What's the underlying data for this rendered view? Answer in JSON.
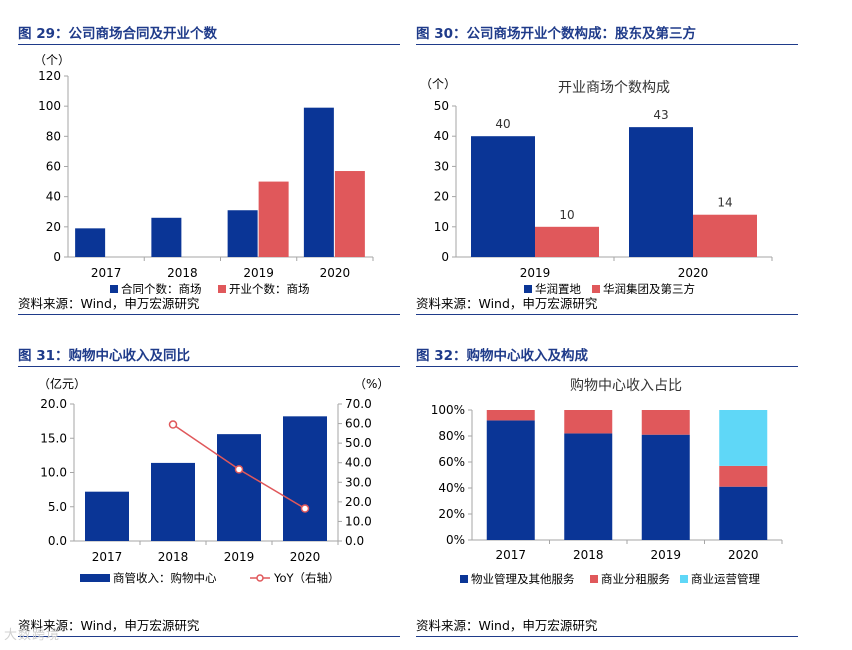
{
  "colors": {
    "navy": "#0a3596",
    "red": "#e0585b",
    "cyan": "#5fd7f7",
    "axis": "#a6a6a6",
    "title": "#1f3b8a"
  },
  "watermark": "大数跨境",
  "panels": [
    {
      "title": "图 29：公司商场合同及开业个数",
      "source": "资料来源：Wind，申万宏源研究"
    },
    {
      "title": "图 30：公司商场开业个数构成：股东及第三方",
      "source": "资料来源：Wind，申万宏源研究"
    },
    {
      "title": "图 31：购物中心收入及同比",
      "source": "资料来源：Wind，申万宏源研究"
    },
    {
      "title": "图 32：购物中心收入及构成",
      "source": "资料来源：Wind，申万宏源研究"
    }
  ],
  "chart_data": [
    {
      "type": "bar",
      "title": "",
      "unit_label": "（个）",
      "categories": [
        "2017",
        "2018",
        "2019",
        "2020"
      ],
      "series": [
        {
          "name": "合同个数：商场",
          "values": [
            19,
            26,
            31,
            99
          ]
        },
        {
          "name": "开业个数：商场",
          "values": [
            0,
            0,
            50,
            57
          ]
        }
      ],
      "ylim": [
        0,
        120
      ],
      "yticks": [
        0,
        20,
        40,
        60,
        80,
        100,
        120
      ],
      "ytick_labels": [
        "0",
        "20",
        "40",
        "60",
        "80",
        "100",
        "120"
      ],
      "legend": "bottom"
    },
    {
      "type": "bar",
      "title": "开业商场个数构成",
      "unit_label": "（个）",
      "categories": [
        "2019",
        "2020"
      ],
      "series": [
        {
          "name": "华润置地",
          "values": [
            40,
            43
          ]
        },
        {
          "name": "华润集团及第三方",
          "values": [
            10,
            14
          ]
        }
      ],
      "data_labels": [
        [
          "40",
          "43"
        ],
        [
          "10",
          "14"
        ]
      ],
      "ylim": [
        0,
        50
      ],
      "yticks": [
        0,
        10,
        20,
        30,
        40,
        50
      ],
      "ytick_labels": [
        "0",
        "10",
        "20",
        "30",
        "40",
        "50"
      ],
      "legend": "bottom"
    },
    {
      "type": "bar+line",
      "title": "",
      "unit_label_left": "（亿元）",
      "unit_label_right": "（%）",
      "categories": [
        "2017",
        "2018",
        "2019",
        "2020"
      ],
      "series": [
        {
          "name": "商管收入：购物中心",
          "type": "bar",
          "axis": "left",
          "values": [
            7.2,
            11.4,
            15.6,
            18.2
          ]
        },
        {
          "name": "YoY（右轴）",
          "type": "line",
          "axis": "right",
          "values": [
            null,
            59.5,
            36.6,
            16.6
          ]
        }
      ],
      "ylim_left": [
        0,
        20
      ],
      "yticks_left": [
        0,
        5,
        10,
        15,
        20
      ],
      "ytick_labels_left": [
        "0.0",
        "5.0",
        "10.0",
        "15.0",
        "20.0"
      ],
      "ylim_right": [
        0,
        70
      ],
      "yticks_right": [
        0,
        10,
        20,
        30,
        40,
        50,
        60,
        70
      ],
      "ytick_labels_right": [
        "0.0",
        "10.0",
        "20.0",
        "30.0",
        "40.0",
        "50.0",
        "60.0",
        "70.0"
      ],
      "legend": "bottom"
    },
    {
      "type": "stacked_bar_percent",
      "title": "购物中心收入占比",
      "categories": [
        "2017",
        "2018",
        "2019",
        "2020"
      ],
      "series": [
        {
          "name": "物业管理及其他服务",
          "values": [
            92,
            82,
            81,
            41
          ]
        },
        {
          "name": "商业分租服务",
          "values": [
            8,
            18,
            19,
            16
          ]
        },
        {
          "name": "商业运营管理",
          "values": [
            0,
            0,
            0,
            43
          ]
        }
      ],
      "ylim": [
        0,
        100
      ],
      "yticks": [
        0,
        20,
        40,
        60,
        80,
        100
      ],
      "ytick_labels": [
        "0%",
        "20%",
        "40%",
        "60%",
        "80%",
        "100%"
      ],
      "legend": "bottom"
    }
  ]
}
